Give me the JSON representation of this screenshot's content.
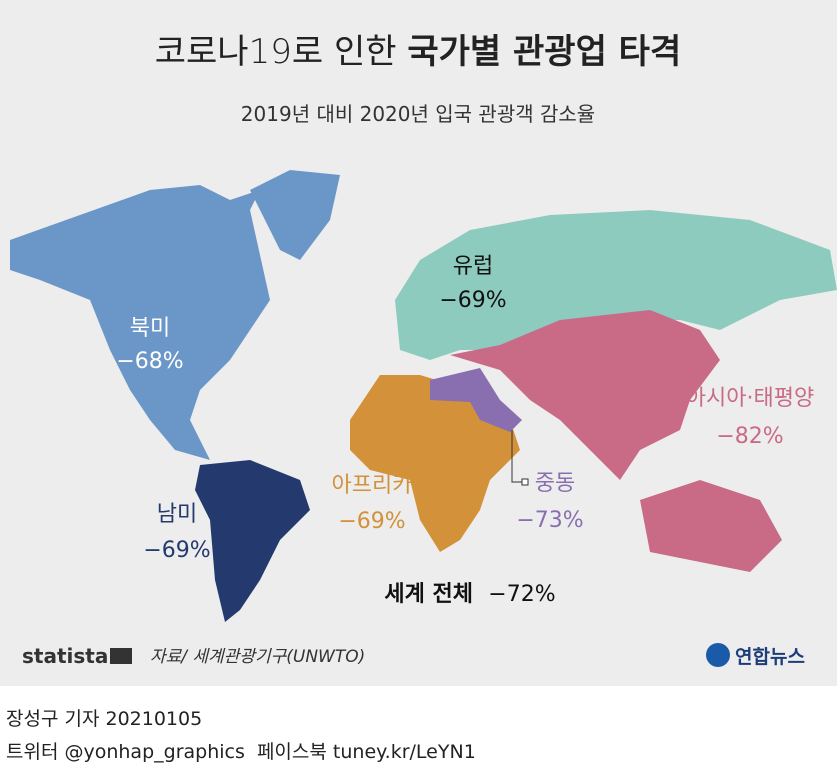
{
  "header": {
    "title_light": "코로나19로 인한",
    "title_bold": "국가별 관광업 타격",
    "subtitle": "2019년 대비 2020년 입국 관광객 감소율"
  },
  "regions": [
    {
      "name": "북미",
      "label": "−68%"
    },
    {
      "name": "유럽",
      "label": "−69%"
    },
    {
      "name": "아시아·태평양",
      "label": "−82%"
    },
    {
      "name": "중동",
      "label": "−73%"
    },
    {
      "name": "아프리카",
      "label": "−69%"
    },
    {
      "name": "남미",
      "label": "−69%"
    }
  ],
  "world": {
    "name": "세계 전체",
    "label": "−72%"
  },
  "footer": {
    "brand": "statista",
    "source": "자료/ 세계관광기구(UNWTO)",
    "logo": "연합뉴스"
  },
  "credits": {
    "author": "장성구 기자 20210105",
    "social": "트위터 @yonhap_graphics  페이스북 tuney.kr/LeYN1"
  }
}
